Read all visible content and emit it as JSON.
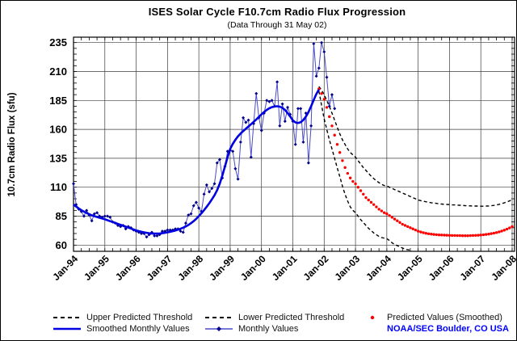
{
  "title": "ISES Solar Cycle F10.7cm Radio Flux Progression",
  "subtitle": "(Data Through 31 May 02)",
  "credit": "NOAA/SEC Boulder, CO USA",
  "colors": {
    "monthly_line": "#4a4ac8",
    "monthly_marker": "#00008b",
    "smoothed_line": "#0000e0",
    "predicted_dots": "#ff0000",
    "threshold_line": "#000000",
    "grid": "#3c3c3c",
    "axis": "#000000",
    "credit_text": "#0000ff"
  },
  "legend": {
    "upper_label": "Upper Predicted Threshold",
    "lower_label": "Lower Predicted Threshold",
    "predicted_label": "Predicted Values (Smoothed)",
    "smoothed_label": "Smoothed Monthly Values",
    "monthly_label": "Monthly Values"
  },
  "chart_data": {
    "type": "line",
    "title": "ISES Solar Cycle F10.7cm Radio Flux Progression",
    "subtitle": "(Data Through 31 May 02)",
    "xlabel": "",
    "ylabel": "10.7cm Radio Flux (sfu)",
    "grid": true,
    "legend_position": "bottom",
    "ylim": [
      55,
      240
    ],
    "y_ticks": [
      60,
      85,
      110,
      135,
      160,
      185,
      210,
      235
    ],
    "x_start": "Jan-94",
    "x_end": "Jan-08",
    "months_total": 168,
    "x_tick_labels": [
      "Jan-94",
      "Jan-95",
      "Jan-96",
      "Jan-97",
      "Jan-98",
      "Jan-99",
      "Jan-00",
      "Jan-01",
      "Jan-02",
      "Jan-03",
      "Jan-04",
      "Jan-05",
      "Jan-06",
      "Jan-07",
      "Jan-08"
    ],
    "series": [
      {
        "name": "Upper Predicted Threshold",
        "style": "dashed",
        "color": "#000000",
        "start_month_index": 94,
        "start_label": "Nov-01",
        "values": [
          197,
          194,
          190,
          185,
          180,
          174,
          168,
          162,
          156,
          151,
          147,
          143,
          140,
          138,
          136,
          133,
          130,
          127,
          124.5,
          122,
          119.5,
          117.5,
          115.5,
          114,
          112.5,
          111.5,
          111,
          110,
          109,
          108,
          107,
          106,
          105,
          104,
          103,
          102,
          101,
          100,
          99,
          98.4,
          97.9,
          97.4,
          97,
          96.6,
          96.3,
          96,
          95.7,
          95.5,
          95.3,
          95.1,
          95,
          94.8,
          94.7,
          94.5,
          94.4,
          94.2,
          94.1,
          94,
          93.9,
          93.8,
          93.7,
          93.7,
          93.6,
          93.6,
          93.7,
          93.8,
          94,
          94.3,
          94.7,
          95.2,
          95.8,
          96.5,
          97.3,
          98.2,
          99.3
        ]
      },
      {
        "name": "Lower Predicted Threshold",
        "style": "dashed",
        "color": "#000000",
        "start_month_index": 94,
        "start_label": "Nov-01",
        "values": [
          193,
          181,
          169,
          160,
          151,
          143,
          135,
          127,
          119,
          111,
          104,
          98,
          93,
          90,
          88,
          85,
          82,
          79.5,
          77,
          74.5,
          72.5,
          70.5,
          69,
          67.5,
          66.5,
          66,
          65.5,
          64,
          62,
          60.5,
          59.5,
          58.5,
          57.5,
          56.5,
          56,
          55.5
        ]
      },
      {
        "name": "Predicted Values (Smoothed)",
        "style": "dots",
        "color": "#ff0000",
        "start_month_index": 94,
        "start_label": "Nov-01",
        "values": [
          195,
          191,
          186,
          179,
          171,
          163,
          155,
          147,
          140,
          133,
          127,
          122,
          118,
          115,
          113,
          110,
          107,
          104,
          101,
          99,
          97,
          95,
          93,
          91,
          89.5,
          88,
          87,
          85.5,
          84,
          82.5,
          81,
          79.5,
          78,
          77,
          76,
          75,
          74,
          73,
          72,
          71.3,
          70.7,
          70.2,
          69.8,
          69.5,
          69.2,
          69,
          68.8,
          68.7,
          68.6,
          68.5,
          68.4,
          68.3,
          68.3,
          68.2,
          68.2,
          68.1,
          68.1,
          68.1,
          68.2,
          68.3,
          68.4,
          68.5,
          68.7,
          68.9,
          69.2,
          69.5,
          69.9,
          70.3,
          70.8,
          71.4,
          72.1,
          72.9,
          73.8,
          74.8,
          76
        ]
      },
      {
        "name": "Monthly Values",
        "style": "thin-line-markers",
        "color": "#4a4ac8",
        "marker_color": "#00008b",
        "start_month_index": 0,
        "start_label": "Jan-94",
        "values": [
          113,
          95,
          91,
          89,
          85,
          90,
          86,
          81,
          87,
          88,
          85,
          84,
          85,
          85,
          84,
          80,
          79,
          77,
          76,
          77,
          74,
          76,
          75,
          73,
          72,
          71,
          70,
          70,
          67,
          69,
          71,
          68,
          68,
          69,
          72,
          72,
          73,
          73,
          73,
          74,
          74,
          72,
          71,
          79,
          86,
          87,
          94,
          97,
          92,
          89,
          104,
          112,
          106,
          109,
          113,
          131,
          134,
          118,
          128,
          141,
          142,
          141,
          126,
          117,
          149,
          170,
          166,
          168,
          136,
          165,
          191,
          170,
          159,
          174,
          185,
          184,
          185,
          180,
          201,
          163,
          182,
          167,
          179,
          173,
          167,
          147,
          178,
          178,
          149,
          174,
          131,
          163,
          234,
          206,
          213,
          235,
          227,
          205,
          180,
          190,
          178
        ]
      },
      {
        "name": "Smoothed Monthly Values",
        "style": "thick-line",
        "color": "#0000e0",
        "start_month_index": 0,
        "start_label": "Jan-94",
        "values": [
          95,
          93.3,
          91.7,
          90.2,
          88.9,
          87.7,
          86.7,
          85.8,
          85,
          84.3,
          83.6,
          83,
          82.3,
          81.5,
          80.7,
          79.9,
          79.1,
          78.3,
          77.5,
          76.7,
          75.9,
          75.1,
          74.3,
          73.5,
          72.7,
          72.1,
          71.5,
          71,
          70.6,
          70.2,
          70,
          69.9,
          69.9,
          70,
          70.3,
          70.6,
          71,
          71.5,
          72,
          72.6,
          73.3,
          74.1,
          75,
          76.1,
          77.4,
          78.9,
          80.7,
          82.7,
          85,
          87.5,
          90.2,
          93.1,
          96.2,
          99.5,
          103,
          107.5,
          113,
          120,
          128,
          136,
          143,
          147.5,
          151,
          154,
          156.5,
          158.5,
          160.5,
          162.5,
          164.5,
          166.5,
          168.5,
          170.8,
          173,
          175,
          176.8,
          178.2,
          179.2,
          179.8,
          180,
          179.6,
          178.6,
          176.8,
          174.2,
          171,
          167.8,
          166,
          165.5,
          166.2,
          168,
          171,
          175,
          180,
          185.5,
          190.5,
          194.5
        ]
      }
    ]
  }
}
